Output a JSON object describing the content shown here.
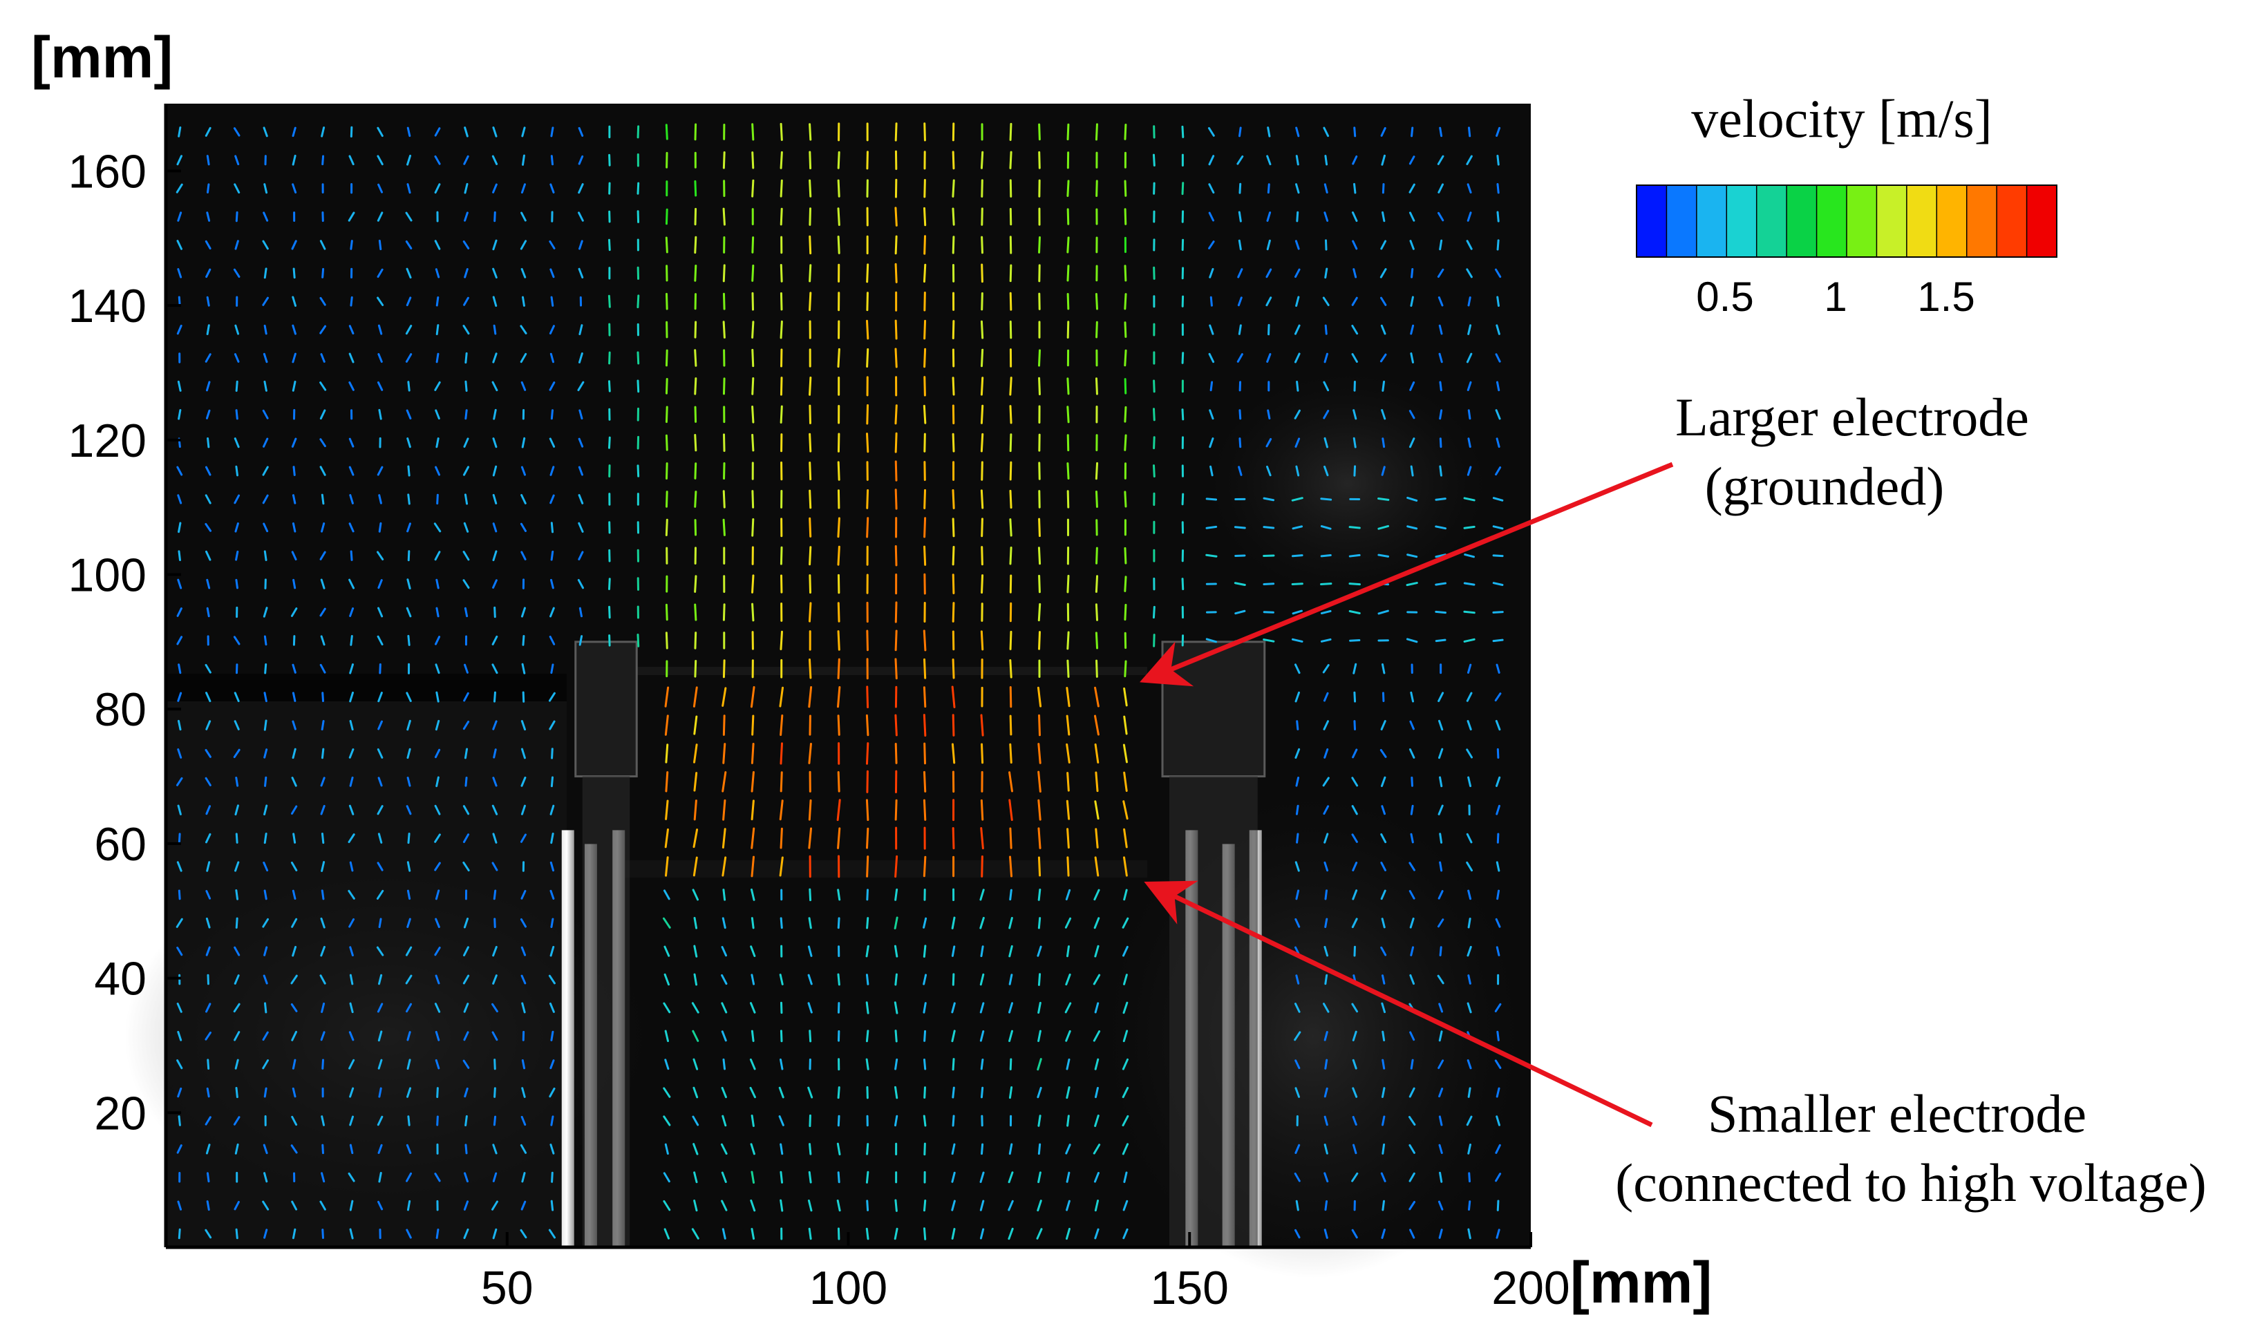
{
  "chart_data": {
    "type": "vector-field",
    "title": "",
    "xlabel": "[mm]",
    "ylabel": "[mm]",
    "xlim": [
      0,
      200
    ],
    "ylim": [
      0,
      170
    ],
    "x_ticks": [
      50,
      100,
      150,
      200
    ],
    "y_ticks": [
      20,
      40,
      60,
      80,
      100,
      120,
      140,
      160
    ],
    "x_tick_labels": [
      "50",
      "100",
      "150",
      "200"
    ],
    "y_tick_labels": [
      "20",
      "40",
      "60",
      "80",
      "100",
      "120",
      "140",
      "160"
    ],
    "colorbar": {
      "title": "velocity [m/s]",
      "range": [
        0.1,
        2.0
      ],
      "ticks": [
        0.5,
        1,
        1.5
      ],
      "tick_labels": [
        "0.5",
        "1",
        "1.5"
      ],
      "levels": 14,
      "colormap": [
        "#0018ff",
        "#0a78ff",
        "#1ab4f0",
        "#1ad2d2",
        "#14d296",
        "#0ad246",
        "#28e61e",
        "#78f014",
        "#c8f028",
        "#f0dc14",
        "#ffb400",
        "#ff7800",
        "#ff3c00",
        "#f00000"
      ]
    },
    "vector_field": {
      "x_range": [
        2,
        198
      ],
      "y_range": [
        2,
        168
      ],
      "spacing": 4.2,
      "jet_x_range": [
        68,
        145
      ],
      "jet_core_speed": 1.3,
      "jet_peak_speed": 1.7,
      "background_speed": 0.3
    },
    "electrodes": [
      {
        "name": "Larger electrode",
        "note": "(grounded)",
        "x_range": [
          58,
          70
        ],
        "y_top": 90
      },
      {
        "name": "Smaller electrode",
        "note": "(connected to high voltage)",
        "x_range": [
          144,
          162
        ],
        "y_top": 90
      }
    ],
    "annotations": [
      {
        "text_line1": "Larger electrode",
        "text_line2": "(grounded)",
        "points_to": [
          143,
          84
        ]
      },
      {
        "text_line1": "Smaller electrode",
        "text_line2": "(connected to high voltage)",
        "points_to": [
          143,
          54
        ]
      }
    ],
    "colors": {
      "arrow": "#e8141e",
      "background": "#0a0a0a"
    }
  }
}
